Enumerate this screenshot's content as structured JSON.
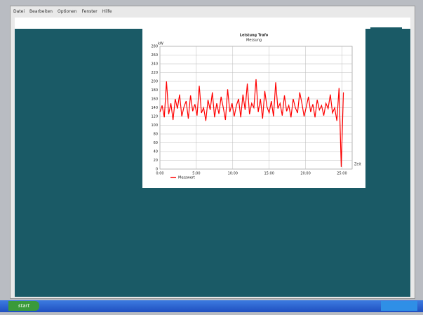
{
  "window": {
    "menu": [
      "Datei",
      "Bearbeiten",
      "Optionen",
      "Fenster",
      "Hilfe"
    ]
  },
  "taskbar": {
    "start": "start"
  },
  "chart_data": {
    "type": "line",
    "title": "Leistung Trafo",
    "subtitle": "Messung",
    "y_label": "kW",
    "x_label": "Zeit",
    "x": [
      0,
      0.3,
      0.6,
      0.9,
      1.2,
      1.5,
      1.8,
      2.1,
      2.4,
      2.7,
      3,
      3.3,
      3.6,
      3.9,
      4.2,
      4.5,
      4.8,
      5.1,
      5.4,
      5.7,
      6,
      6.3,
      6.6,
      6.9,
      7.2,
      7.5,
      7.8,
      8.1,
      8.4,
      8.7,
      9,
      9.3,
      9.6,
      9.9,
      10.2,
      10.5,
      10.8,
      11.1,
      11.4,
      11.7,
      12,
      12.3,
      12.6,
      12.9,
      13.2,
      13.5,
      13.8,
      14.1,
      14.4,
      14.7,
      15,
      15.3,
      15.6,
      15.9,
      16.2,
      16.5,
      16.8,
      17.1,
      17.4,
      17.7,
      18,
      18.3,
      18.6,
      18.9,
      19.2,
      19.5,
      19.8,
      20.1,
      20.4,
      20.7,
      21,
      21.3,
      21.6,
      21.9,
      22.2,
      22.5,
      22.8,
      23.1,
      23.4,
      23.7,
      24,
      24.3,
      24.6,
      24.9,
      25.2
    ],
    "series": [
      {
        "name": "Messwert",
        "color": "#ff0000",
        "values": [
          130,
          145,
          118,
          200,
          125,
          150,
          112,
          160,
          138,
          170,
          120,
          142,
          155,
          115,
          168,
          132,
          148,
          122,
          190,
          128,
          140,
          110,
          158,
          135,
          175,
          118,
          150,
          126,
          165,
          140,
          112,
          182,
          130,
          150,
          120,
          145,
          160,
          118,
          170,
          135,
          195,
          125,
          150,
          140,
          205,
          130,
          160,
          115,
          178,
          142,
          128,
          155,
          120,
          198,
          138,
          150,
          122,
          168,
          132,
          145,
          118,
          160,
          140,
          128,
          175,
          150,
          120,
          142,
          165,
          130,
          148,
          118,
          158,
          135,
          145,
          122,
          150,
          138,
          170,
          128,
          140,
          110,
          185,
          5,
          175
        ]
      }
    ],
    "xlim": [
      0,
      26.4
    ],
    "ylim": [
      0,
      280
    ],
    "xticks": [
      {
        "value": 0,
        "label": "0:00"
      },
      {
        "value": 5,
        "label": "5:00"
      },
      {
        "value": 10,
        "label": "10:00"
      },
      {
        "value": 15,
        "label": "15:00"
      },
      {
        "value": 20,
        "label": "20:00"
      },
      {
        "value": 25,
        "label": "25:00"
      }
    ],
    "yticks": [
      0,
      20,
      40,
      60,
      80,
      100,
      120,
      140,
      160,
      180,
      200,
      220,
      240,
      260,
      280
    ],
    "grid": true
  }
}
